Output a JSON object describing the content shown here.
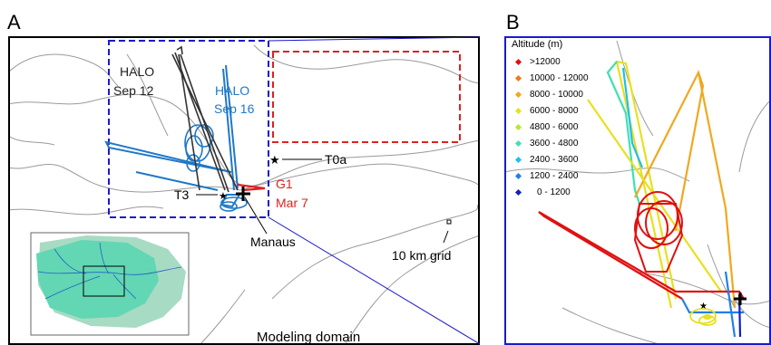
{
  "panels": {
    "a_letter": "A",
    "b_letter": "B"
  },
  "panel_a": {
    "labels": {
      "halo_sep12_line1": "HALO",
      "halo_sep12_line2": "Sep 12",
      "halo_sep16_line1": "HALO",
      "halo_sep16_line2": "Sep 16",
      "t0a": "T0a",
      "t3": "T3",
      "g1_line1": "G1",
      "g1_line2": "Mar 7",
      "manaus": "Manaus",
      "grid": "10 km grid",
      "domain": "Modeling domain"
    },
    "colors": {
      "sep12": "#333333",
      "sep16": "#1f78c8",
      "g1": "#e02020",
      "study_box": "#1a1acc",
      "red_box": "#e02020",
      "rivers": "#9a9a9a"
    },
    "inset": {
      "land_color": "#a8dbc4",
      "basin_color": "#63d6b4"
    }
  },
  "panel_b": {
    "legend_title": "Altitude (m)",
    "legend": [
      {
        "label": ">12000",
        "color": "#e01010"
      },
      {
        "label": "10000 - 12000",
        "color": "#f07818"
      },
      {
        "label": "8000 - 10000",
        "color": "#f0a820"
      },
      {
        "label": "6000 - 8000",
        "color": "#e8e020"
      },
      {
        "label": "4800 - 6000",
        "color": "#b8e830"
      },
      {
        "label": "3600 - 4800",
        "color": "#40e0b0"
      },
      {
        "label": "2400 - 3600",
        "color": "#20c0e8"
      },
      {
        "label": "1200 - 2400",
        "color": "#2080e8"
      },
      {
        "label": "0 - 1200",
        "color": "#1020c0"
      }
    ]
  }
}
